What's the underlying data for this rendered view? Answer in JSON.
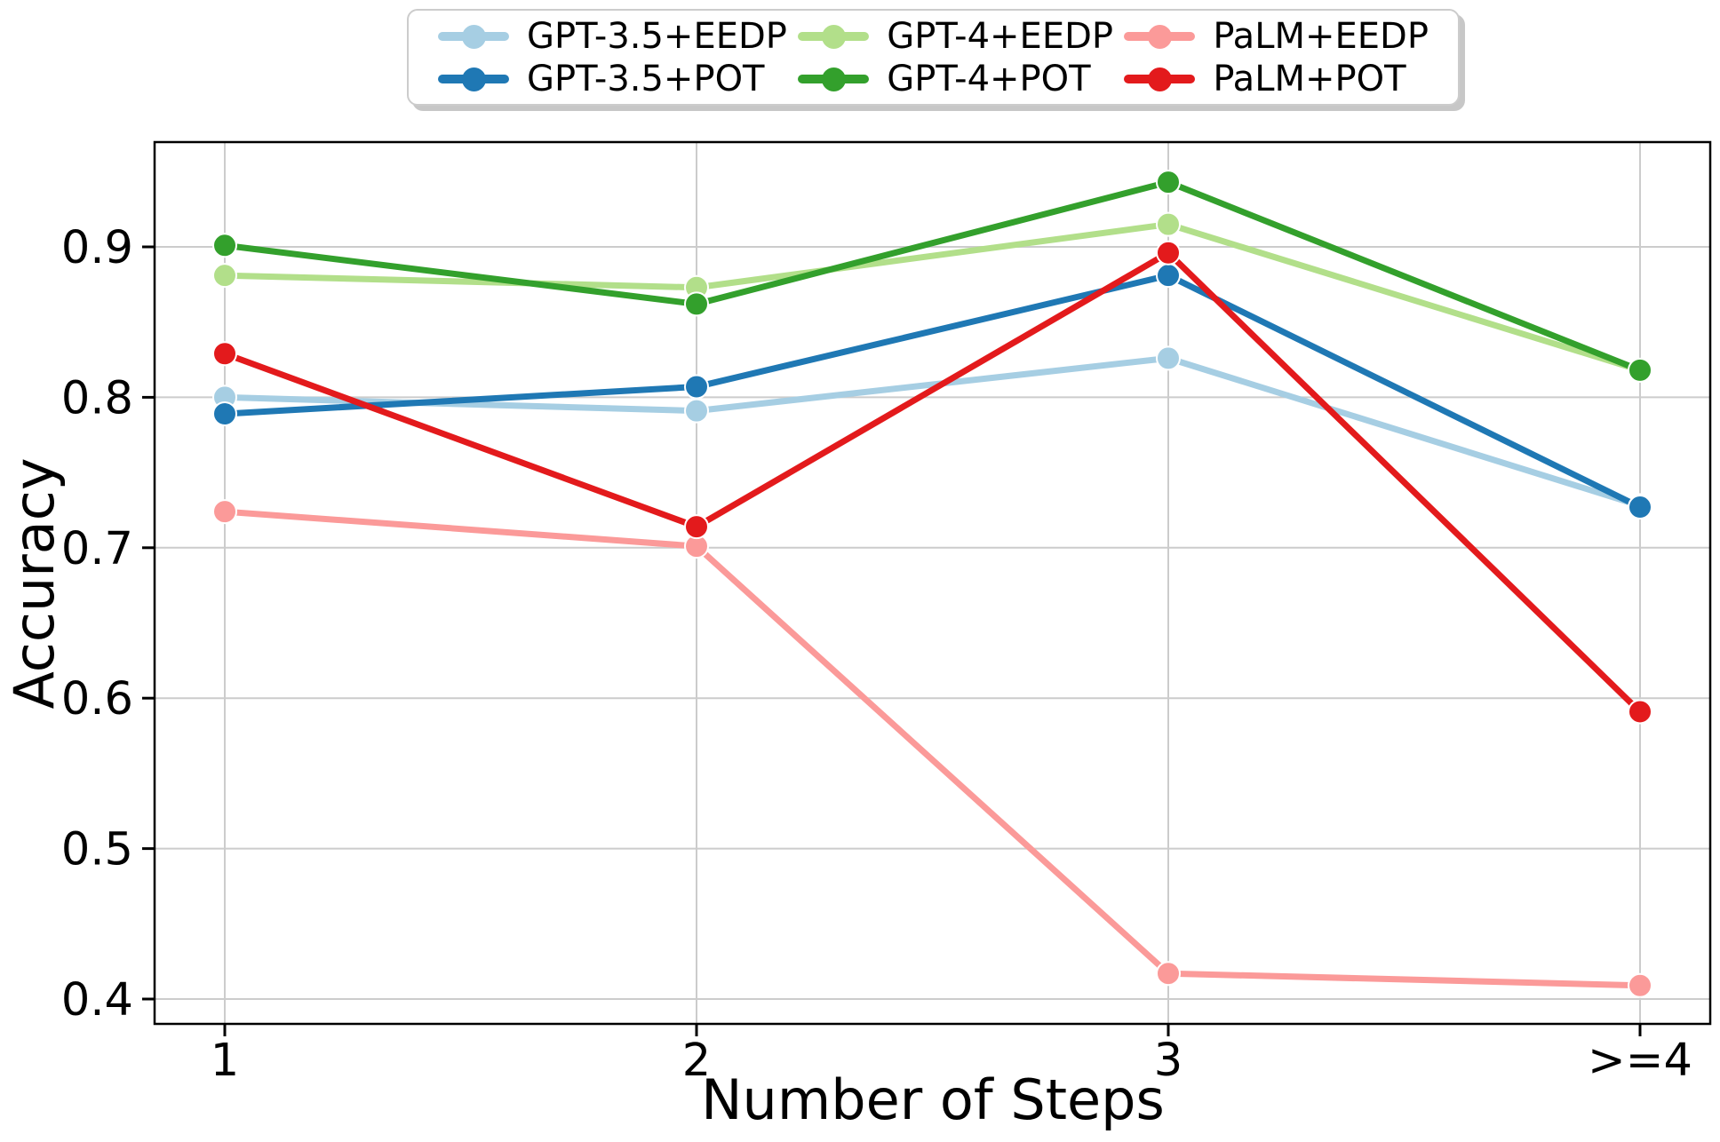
{
  "chart_data": {
    "type": "line",
    "title": "",
    "xlabel": "Number of Steps",
    "ylabel": "Accuracy",
    "x_categories": [
      "1",
      "2",
      "3",
      ">=4"
    ],
    "x_positions": [
      1,
      2,
      3,
      4
    ],
    "yticks": [
      0.4,
      0.5,
      0.6,
      0.7,
      0.8,
      0.9
    ],
    "ylim": [
      0.383,
      0.97
    ],
    "xlim": [
      0.85,
      4.15
    ],
    "grid": true,
    "legend_position": "top-center",
    "legend_row_major_series_order": [
      0,
      2,
      4,
      1,
      3,
      5
    ],
    "series": [
      {
        "name": "GPT-3.5+EEDP",
        "color": "#a6cee3",
        "values": [
          0.8,
          0.791,
          0.826,
          0.728
        ]
      },
      {
        "name": "GPT-3.5+POT",
        "color": "#1f78b4",
        "values": [
          0.789,
          0.807,
          0.881,
          0.727
        ]
      },
      {
        "name": "GPT-4+EEDP",
        "color": "#b2df8a",
        "values": [
          0.881,
          0.873,
          0.915,
          0.818
        ]
      },
      {
        "name": "GPT-4+POT",
        "color": "#33a02c",
        "values": [
          0.901,
          0.862,
          0.943,
          0.818
        ]
      },
      {
        "name": "PaLM+EEDP",
        "color": "#fb9a99",
        "values": [
          0.724,
          0.701,
          0.417,
          0.409
        ]
      },
      {
        "name": "PaLM+POT",
        "color": "#e31a1c",
        "values": [
          0.829,
          0.714,
          0.896,
          0.591
        ]
      }
    ]
  }
}
